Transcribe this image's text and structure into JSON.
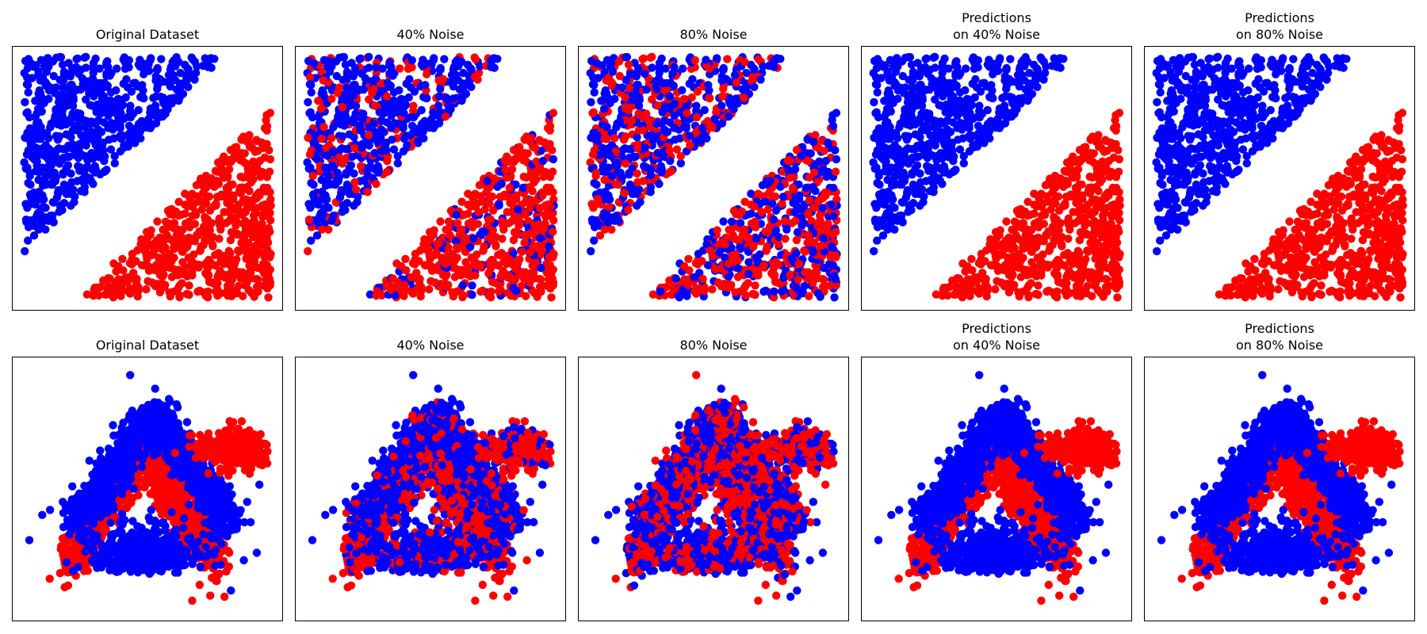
{
  "colors": {
    "class_a": "#0000ff",
    "class_b": "#ff0000"
  },
  "chart_data": [
    {
      "type": "scatter",
      "dataset": "triangles",
      "title": "Original Dataset",
      "noise": 0.0,
      "axes": "off",
      "xlim": [
        0,
        1
      ],
      "ylim": [
        0,
        1
      ]
    },
    {
      "type": "scatter",
      "dataset": "triangles",
      "title": "40% Noise",
      "noise": 0.4,
      "axes": "off",
      "xlim": [
        0,
        1
      ],
      "ylim": [
        0,
        1
      ]
    },
    {
      "type": "scatter",
      "dataset": "triangles",
      "title": "80% Noise",
      "noise": 0.8,
      "axes": "off",
      "xlim": [
        0,
        1
      ],
      "ylim": [
        0,
        1
      ]
    },
    {
      "type": "scatter",
      "dataset": "triangles",
      "title": "Predictions\non 40% Noise",
      "noise": 0.0,
      "axes": "off",
      "xlim": [
        0,
        1
      ],
      "ylim": [
        0,
        1
      ]
    },
    {
      "type": "scatter",
      "dataset": "triangles",
      "title": "Predictions\non 80% Noise",
      "noise": 0.0,
      "axes": "off",
      "xlim": [
        0,
        1
      ],
      "ylim": [
        0,
        1
      ]
    },
    {
      "type": "scatter",
      "dataset": "arches",
      "title": "Original Dataset",
      "noise": 0.0,
      "axes": "off",
      "xlim": [
        0,
        1
      ],
      "ylim": [
        0,
        1
      ]
    },
    {
      "type": "scatter",
      "dataset": "arches",
      "title": "40% Noise",
      "noise": 0.4,
      "axes": "off",
      "xlim": [
        0,
        1
      ],
      "ylim": [
        0,
        1
      ]
    },
    {
      "type": "scatter",
      "dataset": "arches",
      "title": "80% Noise",
      "noise": 0.8,
      "axes": "off",
      "xlim": [
        0,
        1
      ],
      "ylim": [
        0,
        1
      ]
    },
    {
      "type": "scatter",
      "dataset": "arches",
      "title": "Predictions\non 40% Noise",
      "noise": 0.0,
      "axes": "off",
      "xlim": [
        0,
        1
      ],
      "ylim": [
        0,
        1
      ]
    },
    {
      "type": "scatter",
      "dataset": "arches",
      "title": "Predictions\non 80% Noise",
      "noise": 0.0,
      "axes": "off",
      "xlim": [
        0,
        1
      ],
      "ylim": [
        0,
        1
      ]
    }
  ]
}
